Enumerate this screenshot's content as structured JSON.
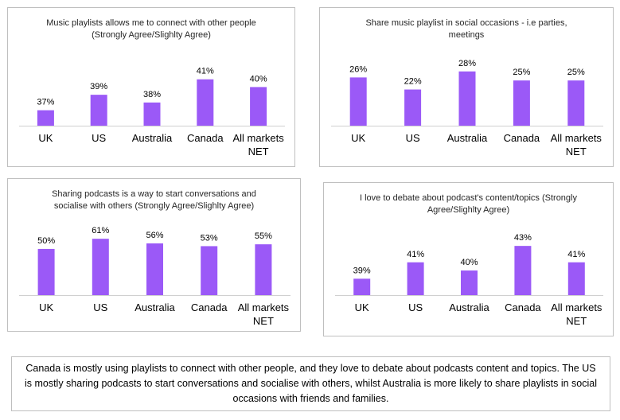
{
  "chart_data": [
    {
      "type": "bar",
      "title": "Music playlists allows me to connect with other people\n(Strongly Agree/Slighlty Agree)",
      "categories": [
        "UK",
        "US",
        "Australia",
        "Canada",
        "All markets\nNET"
      ],
      "values": [
        37,
        39,
        38,
        41,
        40
      ],
      "value_labels": [
        "37%",
        "39%",
        "38%",
        "41%",
        "40%"
      ],
      "color": "#9b59f7",
      "ylim": [
        35,
        42
      ],
      "grid": false
    },
    {
      "type": "bar",
      "title": "Share music playlist in social occasions - i.e parties,\nmeetings",
      "categories": [
        "UK",
        "US",
        "Australia",
        "Canada",
        "All markets\nNET"
      ],
      "values": [
        26,
        22,
        28,
        25,
        25
      ],
      "value_labels": [
        "26%",
        "22%",
        "28%",
        "25%",
        "25%"
      ],
      "color": "#9b59f7",
      "ylim": [
        10,
        29
      ],
      "grid": false
    },
    {
      "type": "bar",
      "title": "Sharing podcasts is a way to start conversations and\nsocialise with others (Strongly Agree/Slighlty Agree)",
      "categories": [
        "UK",
        "US",
        "Australia",
        "Canada",
        "All markets\nNET"
      ],
      "values": [
        50,
        61,
        56,
        53,
        55
      ],
      "value_labels": [
        "50%",
        "61%",
        "56%",
        "53%",
        "55%"
      ],
      "color": "#9b59f7",
      "ylim": [
        0,
        62
      ],
      "grid": false
    },
    {
      "type": "bar",
      "title": "I love to debate about podcast's content/topics (Strongly\nAgree/Slighlty Agree)",
      "categories": [
        "UK",
        "US",
        "Australia",
        "Canada",
        "All markets\nNET"
      ],
      "values": [
        39,
        41,
        40,
        43,
        41
      ],
      "value_labels": [
        "39%",
        "41%",
        "40%",
        "43%",
        "41%"
      ],
      "color": "#9b59f7",
      "ylim": [
        37,
        43.5
      ],
      "grid": false
    }
  ],
  "summary": "Canada is mostly using playlists to connect with other people, and they love to debate about podcasts content and topics. The US is mostly sharing podcasts to start conversations and socialise with others, whilst Australia is more likely to share playlists in social occasions with friends and families."
}
